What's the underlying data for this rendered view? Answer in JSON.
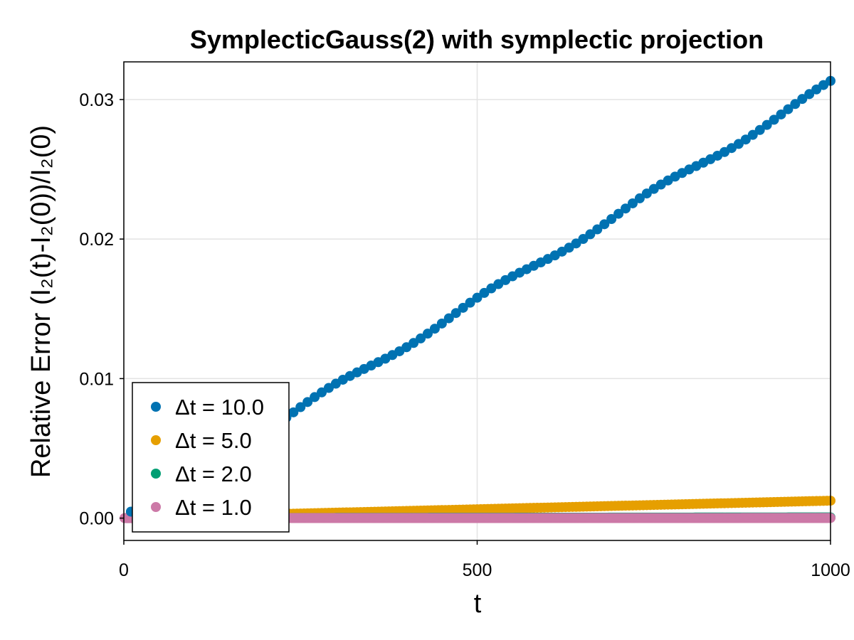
{
  "chart_data": {
    "type": "scatter",
    "title": "SymplecticGauss(2) with symplectic projection",
    "xlabel": "t",
    "ylabel": "Relative Error (I₂(t)-I₂(0))/I₂(0)",
    "xlim": [
      0,
      1000
    ],
    "ylim": [
      -0.0016,
      0.0327
    ],
    "xticks": [
      0,
      500,
      1000
    ],
    "xtick_labels": [
      "0",
      "500",
      "1000"
    ],
    "yticks": [
      0.0,
      0.01,
      0.02,
      0.03
    ],
    "ytick_labels": [
      "0.00",
      "0.01",
      "0.02",
      "0.03"
    ],
    "grid": true,
    "legend_position": "bottom-left",
    "series": [
      {
        "name": "Δt = 10.0",
        "color": "#0072b2",
        "dt": 10.0,
        "x_range": [
          10,
          1000
        ],
        "y_range": [
          0.0004,
          0.0311
        ]
      },
      {
        "name": "Δt = 5.0",
        "color": "#e69f00",
        "dt": 5.0,
        "x_range": [
          5,
          1000
        ],
        "y_range": [
          3e-05,
          0.00125
        ]
      },
      {
        "name": "Δt = 2.0",
        "color": "#009e73",
        "dt": 2.0,
        "x_range": [
          2,
          1000
        ],
        "y_range": [
          0.0,
          5e-05
        ]
      },
      {
        "name": "Δt = 1.0",
        "color": "#cc79a7",
        "dt": 1.0,
        "x_range": [
          1,
          1000
        ],
        "y_range": [
          0.0,
          1e-05
        ]
      }
    ]
  }
}
